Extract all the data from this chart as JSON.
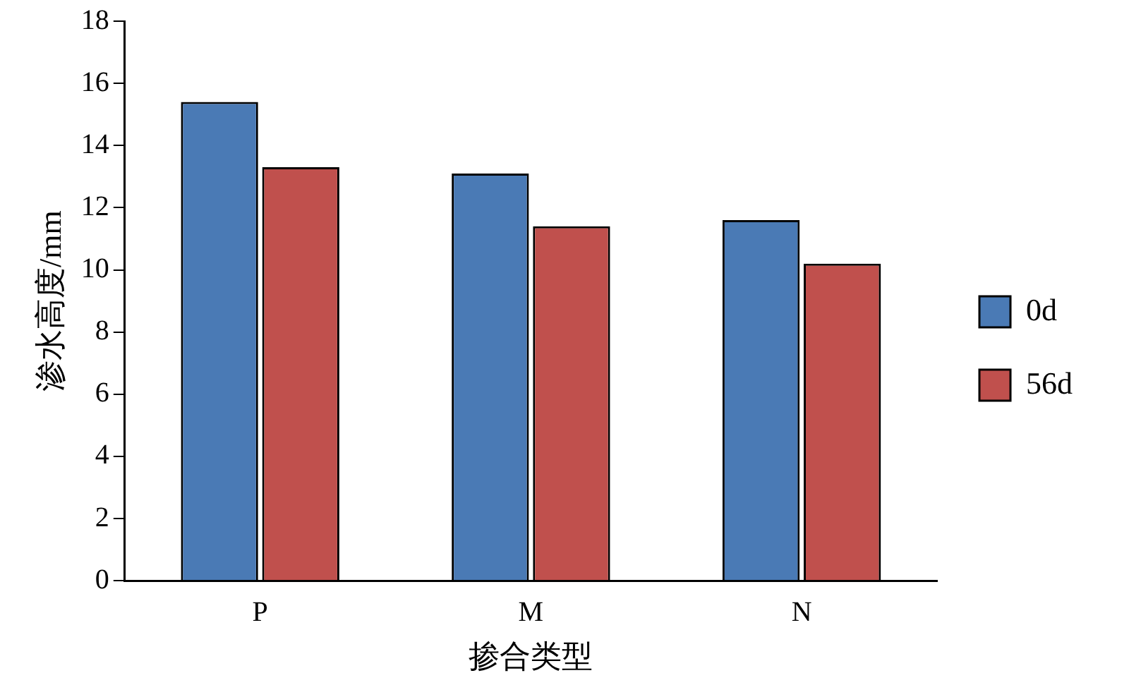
{
  "chart_data": {
    "type": "bar",
    "xlabel": "掺合类型",
    "ylabel": "渗水高度/mm",
    "categories": [
      "P",
      "M",
      "N"
    ],
    "series": [
      {
        "name": "0d",
        "color": "#4a7ab5",
        "values": [
          15.4,
          13.1,
          11.6
        ]
      },
      {
        "name": "56d",
        "color": "#c0504d",
        "values": [
          13.3,
          11.4,
          10.2
        ]
      }
    ],
    "ylim": [
      0,
      18
    ],
    "yticks": [
      0,
      2,
      4,
      6,
      8,
      10,
      12,
      14,
      16,
      18
    ],
    "grid": false,
    "legend": "right"
  }
}
